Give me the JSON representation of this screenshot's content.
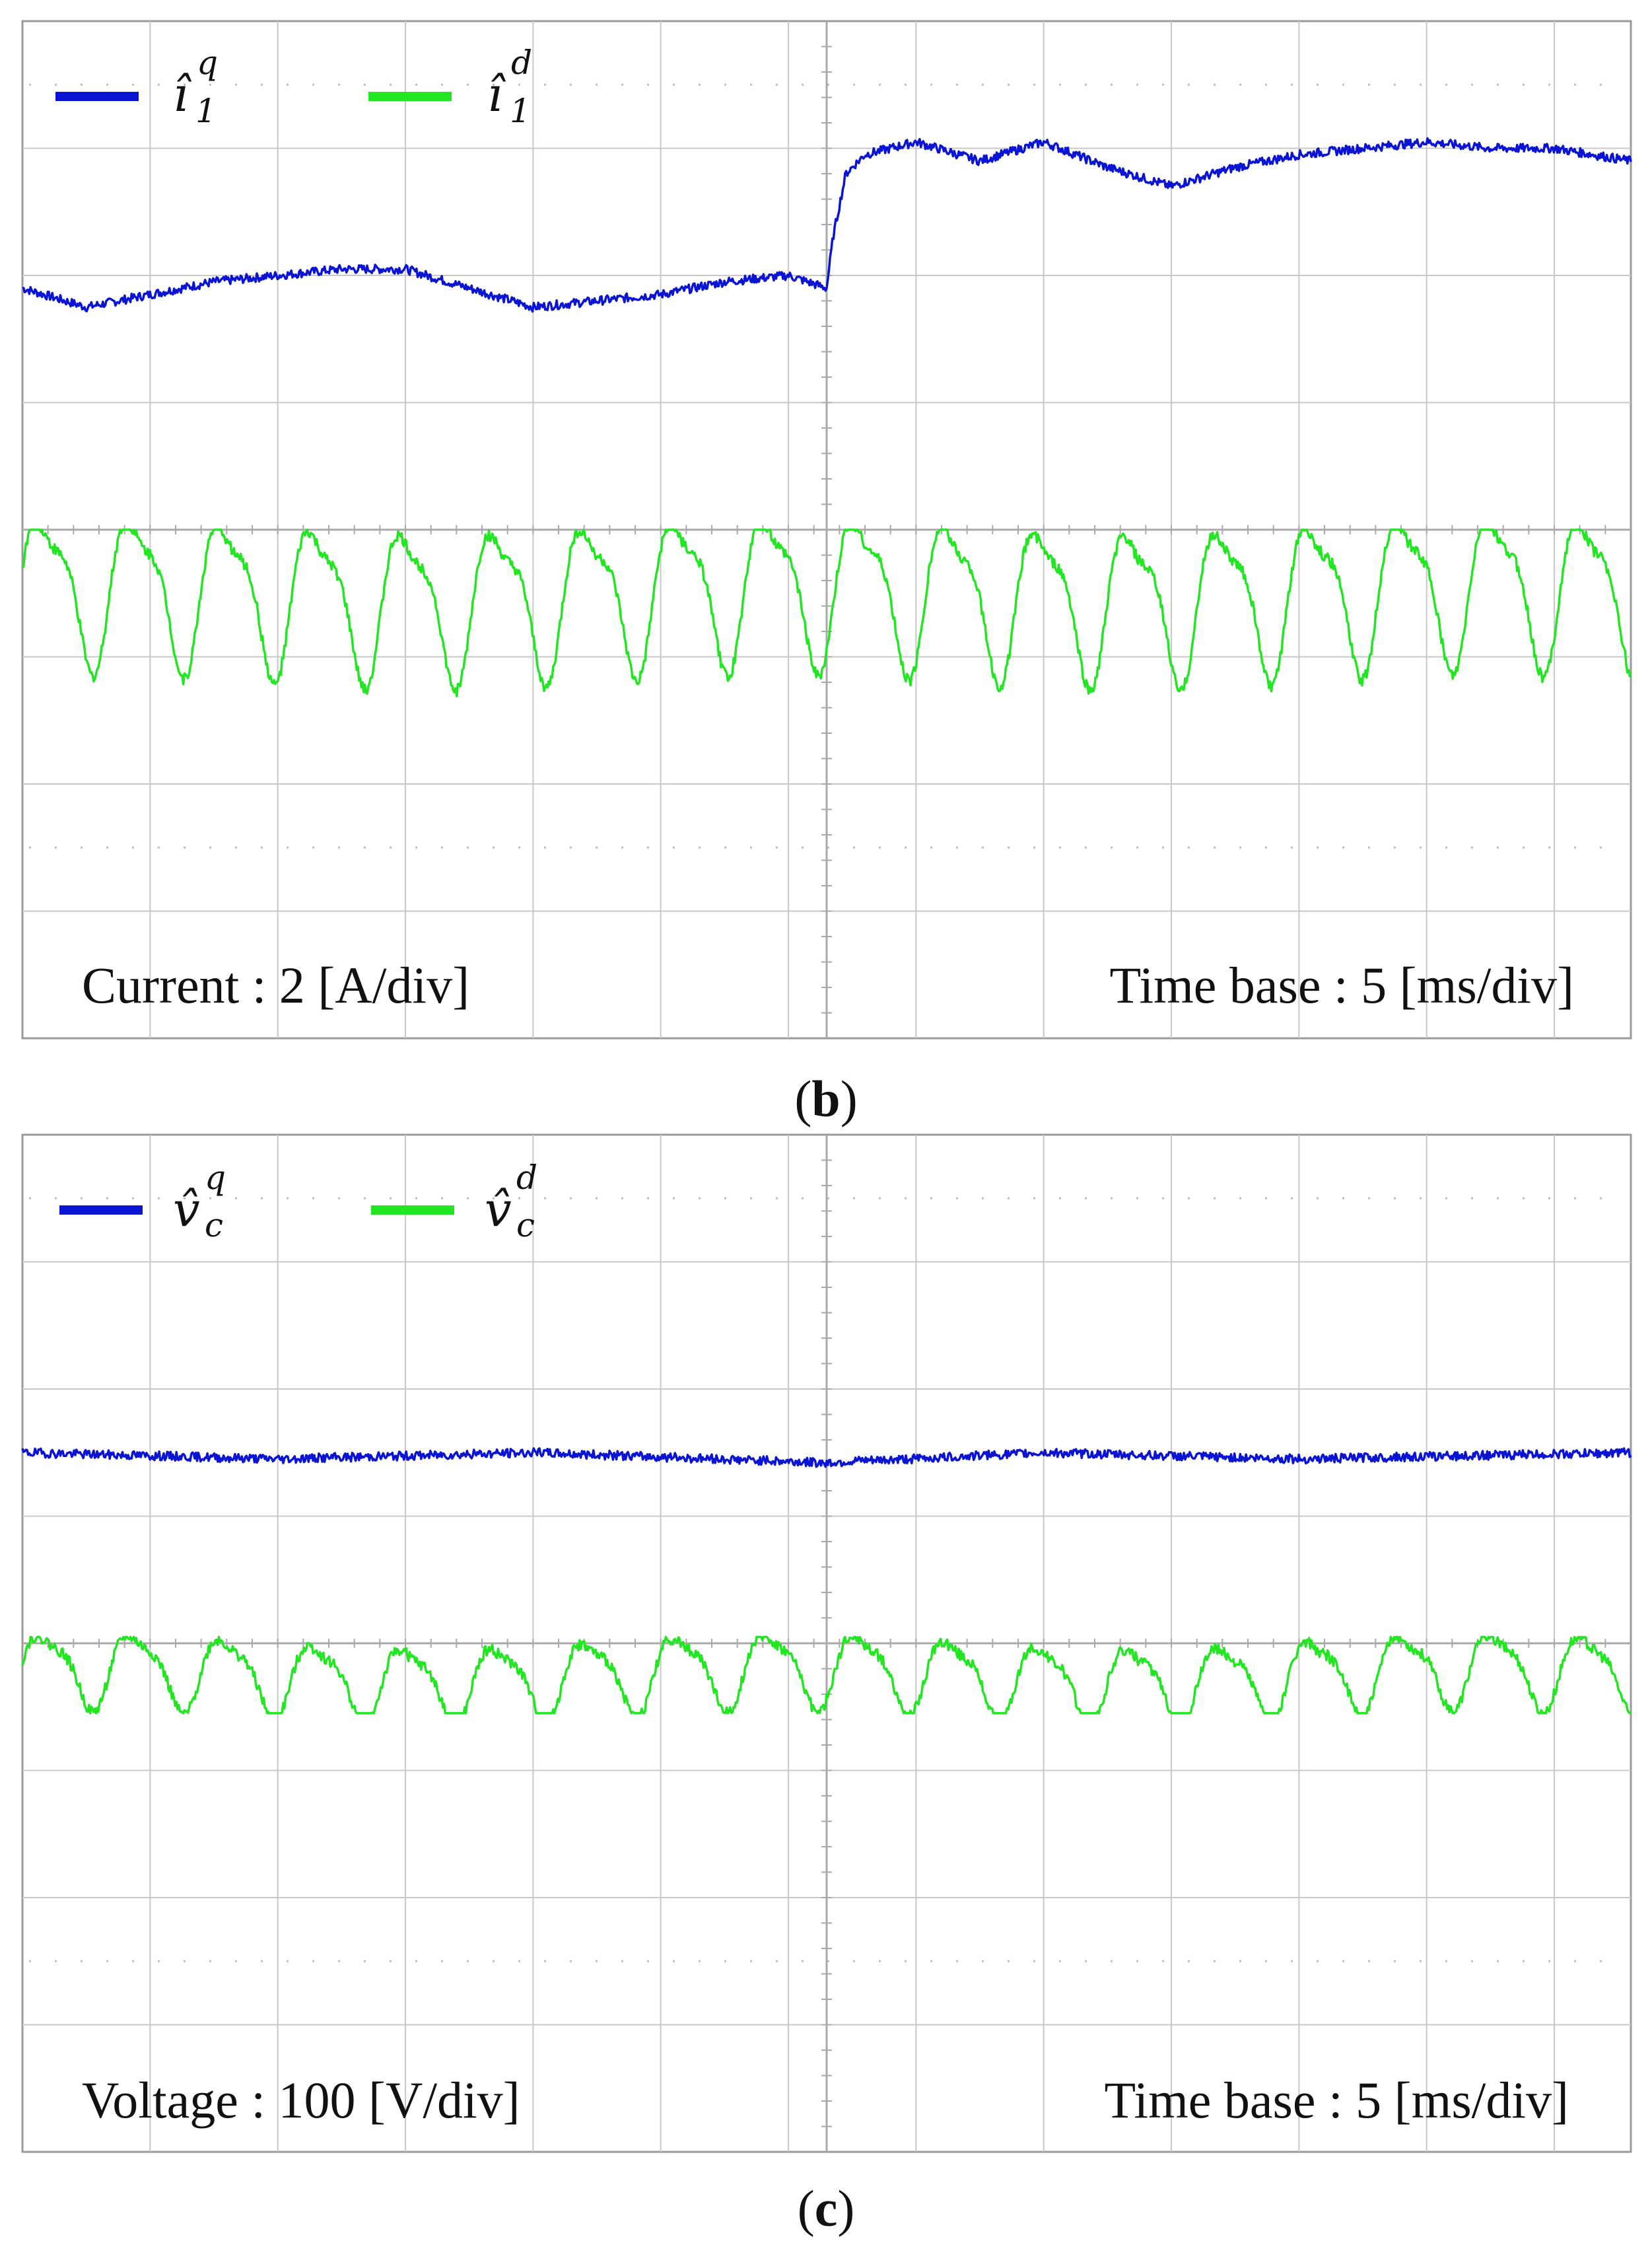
{
  "figures": [
    {
      "caption_paren_open": "(",
      "caption_letter": "b",
      "caption_paren_close": ")",
      "bottom_left_label": "Current  : 2 [A/div]",
      "bottom_right_label": "Time  base : 5 [ms/div]",
      "legend": [
        {
          "symbol": "î",
          "sub": "1",
          "sup": "q",
          "color": "#0a14d2"
        },
        {
          "symbol": "î",
          "sub": "1",
          "sup": "d",
          "color": "#22e622"
        }
      ]
    },
    {
      "caption_paren_open": "(",
      "caption_letter": "c",
      "caption_paren_close": ")",
      "bottom_left_label": "Voltage  : 100 [V/div]",
      "bottom_right_label": "Time  base : 5 [ms/div]",
      "legend": [
        {
          "symbol": "v̂",
          "sub": "c",
          "sup": "q",
          "color": "#0a14d2"
        },
        {
          "symbol": "v̂",
          "sub": "c",
          "sup": "d",
          "color": "#22e622"
        }
      ]
    }
  ],
  "colors": {
    "frame": "#9a9a9a",
    "grid": "#c8c8c8",
    "trace_q": "#0a14d2",
    "trace_d": "#22e622"
  },
  "chart_data": [
    {
      "type": "line",
      "x_unit": "div",
      "y_unit": "div",
      "x_range": [
        0,
        12.6
      ],
      "y_range": [
        -4,
        4
      ],
      "x_divisions": 12.6,
      "y_divisions": 8,
      "grid": true,
      "legend_position": "top-left",
      "series": [
        {
          "name": "î_1^q",
          "color": "#0a14d2",
          "x": [
            0,
            0.5,
            1.0,
            1.5,
            2.0,
            2.5,
            3.0,
            3.5,
            4.0,
            4.5,
            5.0,
            5.5,
            6.0,
            6.3,
            6.35,
            6.45,
            6.6,
            7.0,
            7.5,
            8.0,
            8.5,
            9.0,
            9.5,
            10.0,
            10.5,
            11.0,
            11.5,
            12.0,
            12.6
          ],
          "y": [
            1.9,
            1.75,
            1.85,
            1.95,
            2.0,
            2.05,
            2.05,
            1.9,
            1.75,
            1.8,
            1.85,
            1.95,
            2.0,
            1.9,
            2.3,
            2.8,
            2.95,
            3.05,
            2.9,
            3.05,
            2.85,
            2.7,
            2.85,
            2.95,
            3.0,
            3.05,
            3.0,
            3.0,
            2.9
          ]
        },
        {
          "name": "î_1^d",
          "color": "#22e622",
          "shape": "periodic",
          "offset": -0.5,
          "period_div": 0.71,
          "fundamental_amplitude": 0.55,
          "harmonic_amplitude": 0.18,
          "min_y": -1.4,
          "max_y": 0
        }
      ]
    },
    {
      "type": "line",
      "x_unit": "div",
      "y_unit": "div",
      "x_range": [
        0,
        12.6
      ],
      "y_range": [
        -4,
        4
      ],
      "x_divisions": 12.6,
      "y_divisions": 8,
      "grid": true,
      "legend_position": "top-left",
      "series": [
        {
          "name": "v̂_c^q",
          "color": "#0a14d2",
          "x": [
            0,
            2,
            4,
            6.3,
            8,
            10,
            12.6
          ],
          "y": [
            1.5,
            1.45,
            1.5,
            1.42,
            1.5,
            1.45,
            1.5
          ]
        },
        {
          "name": "v̂_c^d",
          "color": "#22e622",
          "shape": "periodic",
          "offset": -0.25,
          "period_div": 0.71,
          "fundamental_amplitude": 0.28,
          "harmonic_amplitude": 0.08,
          "min_y": -0.55,
          "max_y": 0.05
        }
      ]
    }
  ]
}
